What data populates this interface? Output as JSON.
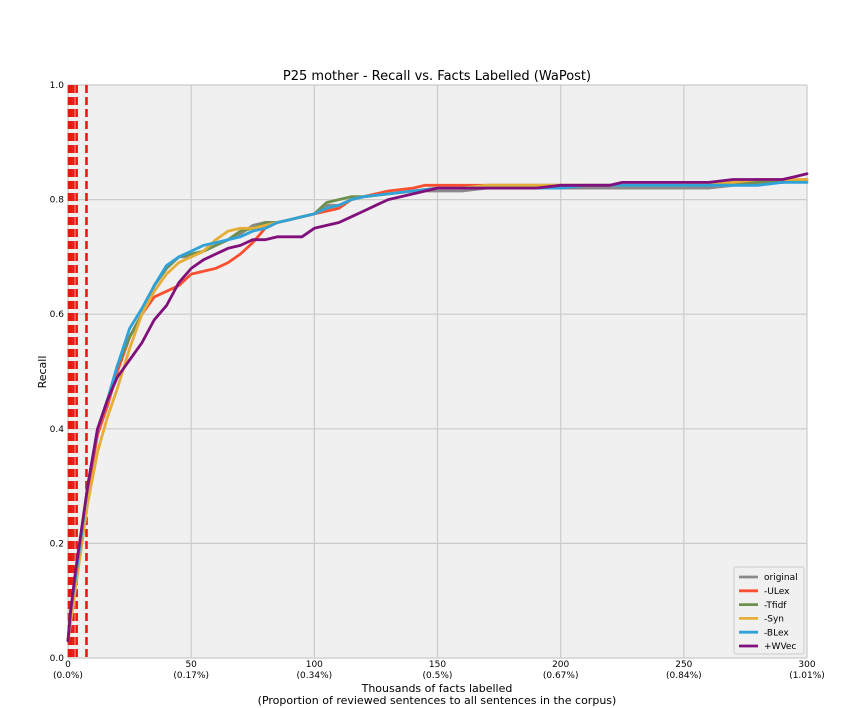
{
  "chart_data": {
    "type": "line",
    "title": "P25 mother - Recall vs. Facts Labelled (WaPost)",
    "xlabel": "Thousands of facts labelled",
    "xlabel2": "(Proportion of reviewed sentences to all sentences in the corpus)",
    "ylabel": "Recall",
    "xlim": [
      0,
      300
    ],
    "ylim": [
      0,
      1.0
    ],
    "xticks": [
      {
        "value": 0,
        "label": "0",
        "sublabel": "(0.0%)"
      },
      {
        "value": 50,
        "label": "50",
        "sublabel": "(0.17%)"
      },
      {
        "value": 100,
        "label": "100",
        "sublabel": "(0.34%)"
      },
      {
        "value": 150,
        "label": "150",
        "sublabel": "(0.5%)"
      },
      {
        "value": 200,
        "label": "200",
        "sublabel": "(0.67%)"
      },
      {
        "value": 250,
        "label": "250",
        "sublabel": "(0.84%)"
      },
      {
        "value": 300,
        "label": "300",
        "sublabel": "(1.01%)"
      }
    ],
    "yticks": [
      {
        "value": 0.0,
        "label": "0.0"
      },
      {
        "value": 0.2,
        "label": "0.2"
      },
      {
        "value": 0.4,
        "label": "0.4"
      },
      {
        "value": 0.6,
        "label": "0.6"
      },
      {
        "value": 0.8,
        "label": "0.8"
      },
      {
        "value": 1.0,
        "label": "1.0"
      }
    ],
    "grid": true,
    "legend_position": "bottom-right",
    "vlines": {
      "color": "#e8190f",
      "x": [
        0.4,
        1.2,
        2.2,
        3.5,
        7.5
      ]
    },
    "series": [
      {
        "name": "original",
        "color": "#8a8a8a",
        "x": [
          0,
          1,
          3,
          5,
          8,
          12,
          16,
          20,
          25,
          30,
          35,
          40,
          45,
          50,
          55,
          60,
          65,
          70,
          75,
          80,
          85,
          90,
          95,
          100,
          105,
          110,
          115,
          120,
          125,
          130,
          140,
          150,
          160,
          170,
          180,
          190,
          200,
          210,
          220,
          230,
          240,
          250,
          260,
          270,
          280,
          290,
          300
        ],
        "y": [
          0.03,
          0.08,
          0.14,
          0.2,
          0.3,
          0.4,
          0.44,
          0.5,
          0.56,
          0.6,
          0.65,
          0.68,
          0.7,
          0.7,
          0.71,
          0.72,
          0.73,
          0.74,
          0.755,
          0.76,
          0.76,
          0.765,
          0.77,
          0.775,
          0.79,
          0.79,
          0.8,
          0.805,
          0.81,
          0.81,
          0.815,
          0.815,
          0.815,
          0.82,
          0.82,
          0.82,
          0.82,
          0.82,
          0.82,
          0.82,
          0.82,
          0.82,
          0.82,
          0.825,
          0.83,
          0.83,
          0.835
        ]
      },
      {
        "name": "-ULex",
        "color": "#fc4f30",
        "x": [
          0,
          1,
          3,
          5,
          8,
          12,
          16,
          20,
          25,
          30,
          35,
          40,
          45,
          50,
          55,
          60,
          65,
          70,
          75,
          80,
          85,
          90,
          95,
          100,
          105,
          110,
          115,
          120,
          125,
          130,
          140,
          145,
          150,
          160,
          170,
          180,
          190,
          200,
          210,
          220,
          230,
          240,
          250,
          260,
          270,
          280,
          290,
          300
        ],
        "y": [
          0.03,
          0.07,
          0.14,
          0.2,
          0.29,
          0.39,
          0.44,
          0.5,
          0.56,
          0.6,
          0.63,
          0.64,
          0.65,
          0.67,
          0.675,
          0.68,
          0.69,
          0.705,
          0.725,
          0.75,
          0.76,
          0.765,
          0.77,
          0.775,
          0.78,
          0.785,
          0.8,
          0.805,
          0.81,
          0.815,
          0.82,
          0.825,
          0.825,
          0.825,
          0.825,
          0.825,
          0.825,
          0.825,
          0.825,
          0.825,
          0.825,
          0.825,
          0.825,
          0.825,
          0.83,
          0.83,
          0.83,
          0.835
        ]
      },
      {
        "name": "-Tfidf",
        "color": "#6d904f",
        "x": [
          0,
          1,
          3,
          5,
          8,
          12,
          16,
          20,
          25,
          30,
          35,
          40,
          45,
          50,
          55,
          60,
          65,
          70,
          75,
          80,
          85,
          90,
          95,
          100,
          105,
          110,
          115,
          120,
          130,
          140,
          150,
          160,
          170,
          180,
          190,
          200,
          210,
          220,
          230,
          240,
          250,
          260,
          270,
          280,
          290,
          300
        ],
        "y": [
          0.03,
          0.08,
          0.14,
          0.2,
          0.3,
          0.4,
          0.45,
          0.51,
          0.56,
          0.6,
          0.65,
          0.68,
          0.7,
          0.705,
          0.71,
          0.72,
          0.73,
          0.745,
          0.75,
          0.76,
          0.76,
          0.765,
          0.77,
          0.775,
          0.795,
          0.8,
          0.805,
          0.805,
          0.81,
          0.815,
          0.82,
          0.82,
          0.825,
          0.825,
          0.825,
          0.825,
          0.825,
          0.825,
          0.825,
          0.825,
          0.825,
          0.825,
          0.83,
          0.83,
          0.83,
          0.835
        ]
      },
      {
        "name": "-Syn",
        "color": "#e5ae38",
        "x": [
          0,
          1,
          3,
          5,
          8,
          12,
          16,
          20,
          25,
          30,
          35,
          40,
          45,
          50,
          55,
          60,
          65,
          70,
          75,
          80,
          85,
          90,
          95,
          100,
          105,
          110,
          115,
          120,
          130,
          140,
          150,
          160,
          170,
          180,
          190,
          200,
          210,
          220,
          230,
          240,
          250,
          260,
          270,
          280,
          290,
          300
        ],
        "y": [
          0.03,
          0.06,
          0.12,
          0.18,
          0.27,
          0.36,
          0.42,
          0.47,
          0.54,
          0.6,
          0.64,
          0.67,
          0.69,
          0.7,
          0.71,
          0.73,
          0.745,
          0.75,
          0.75,
          0.755,
          0.76,
          0.765,
          0.77,
          0.775,
          0.785,
          0.79,
          0.8,
          0.805,
          0.81,
          0.815,
          0.82,
          0.82,
          0.825,
          0.825,
          0.825,
          0.825,
          0.825,
          0.825,
          0.825,
          0.825,
          0.825,
          0.83,
          0.83,
          0.835,
          0.835,
          0.835
        ]
      },
      {
        "name": "-BLex",
        "color": "#30a2da",
        "x": [
          0,
          1,
          3,
          5,
          8,
          12,
          16,
          20,
          25,
          30,
          35,
          40,
          45,
          50,
          55,
          60,
          65,
          70,
          75,
          80,
          85,
          90,
          95,
          100,
          105,
          110,
          115,
          120,
          130,
          140,
          150,
          160,
          170,
          180,
          190,
          200,
          210,
          220,
          230,
          240,
          250,
          260,
          270,
          280,
          290,
          300
        ],
        "y": [
          0.03,
          0.08,
          0.14,
          0.2,
          0.3,
          0.4,
          0.45,
          0.51,
          0.575,
          0.61,
          0.65,
          0.685,
          0.7,
          0.71,
          0.72,
          0.725,
          0.73,
          0.735,
          0.745,
          0.75,
          0.76,
          0.765,
          0.77,
          0.775,
          0.785,
          0.79,
          0.8,
          0.805,
          0.81,
          0.815,
          0.82,
          0.82,
          0.82,
          0.82,
          0.82,
          0.82,
          0.825,
          0.825,
          0.825,
          0.825,
          0.825,
          0.825,
          0.825,
          0.825,
          0.83,
          0.83
        ]
      },
      {
        "name": "+WVec",
        "color": "#810f7c",
        "x": [
          0,
          1,
          3,
          5,
          8,
          12,
          16,
          20,
          25,
          30,
          35,
          40,
          45,
          50,
          55,
          60,
          65,
          70,
          75,
          80,
          85,
          90,
          95,
          100,
          105,
          110,
          115,
          120,
          125,
          130,
          135,
          140,
          145,
          150,
          160,
          170,
          180,
          190,
          200,
          210,
          220,
          225,
          230,
          240,
          250,
          260,
          270,
          280,
          290,
          295,
          300
        ],
        "y": [
          0.03,
          0.08,
          0.15,
          0.21,
          0.3,
          0.4,
          0.45,
          0.49,
          0.52,
          0.55,
          0.59,
          0.615,
          0.655,
          0.68,
          0.695,
          0.705,
          0.715,
          0.72,
          0.73,
          0.73,
          0.735,
          0.735,
          0.735,
          0.75,
          0.755,
          0.76,
          0.77,
          0.78,
          0.79,
          0.8,
          0.805,
          0.81,
          0.815,
          0.82,
          0.82,
          0.82,
          0.82,
          0.82,
          0.825,
          0.825,
          0.825,
          0.83,
          0.83,
          0.83,
          0.83,
          0.83,
          0.835,
          0.835,
          0.835,
          0.84,
          0.845
        ]
      }
    ]
  }
}
